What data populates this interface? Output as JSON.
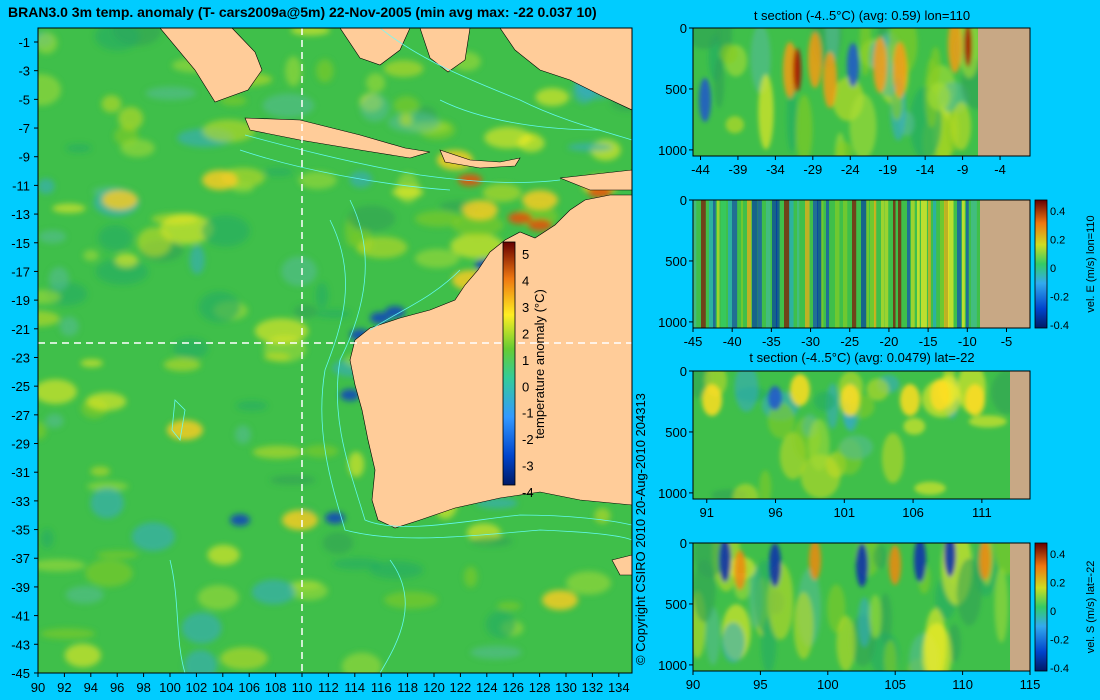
{
  "main_title": "BRAN3.0 3m temp. anomaly (T- cars2009a@5m) 22-Nov-2005 (min avg max: -22 0.037 10)",
  "copyright": "© Copyright CSIRO 2010  20-Aug-2010 204313",
  "colors": {
    "background": "#00ccff",
    "land": "#ffcc99",
    "land_section": "#c8a885",
    "ocean_base": "#3fbf4a",
    "contour": "#66ffff",
    "crosshair": "#ffffff"
  },
  "chart_data": [
    {
      "type": "heatmap",
      "name": "map",
      "x_ticks": [
        "90",
        "92",
        "94",
        "96",
        "98",
        "100",
        "102",
        "104",
        "106",
        "108",
        "110",
        "112",
        "114",
        "116",
        "118",
        "120",
        "122",
        "124",
        "126",
        "128",
        "130",
        "132",
        "134"
      ],
      "y_ticks": [
        "-1",
        "-3",
        "-5",
        "-7",
        "-9",
        "-11",
        "-13",
        "-15",
        "-17",
        "-19",
        "-21",
        "-23",
        "-25",
        "-27",
        "-29",
        "-31",
        "-33",
        "-35",
        "-37",
        "-39",
        "-41",
        "-43",
        "-45"
      ],
      "xlim": [
        90,
        135
      ],
      "ylim": [
        -45,
        0.5
      ],
      "crosshair": {
        "lon": 110,
        "lat": -22
      },
      "colorbar": {
        "label": "temperature anomaly (°C)",
        "range": [
          -4,
          5
        ],
        "ticks": [
          "5",
          "4",
          "3",
          "2",
          "1",
          "0",
          "-1",
          "-2",
          "-3",
          "-4"
        ]
      }
    },
    {
      "type": "heatmap",
      "name": "t-section-lon110",
      "title": "t section (-4..5°C) (avg: 0.59) lon=110",
      "x_ticks": [
        "-44",
        "-39",
        "-34",
        "-29",
        "-24",
        "-19",
        "-14",
        "-9",
        "-4"
      ],
      "y_ticks": [
        "0",
        "500",
        "1000"
      ],
      "xlim": [
        -45,
        0
      ],
      "ylim": [
        1050,
        0
      ]
    },
    {
      "type": "heatmap",
      "name": "u-section-lon110",
      "title": "",
      "x_ticks": [
        "-45",
        "-40",
        "-35",
        "-30",
        "-25",
        "-20",
        "-15",
        "-10",
        "-5"
      ],
      "y_ticks": [
        "0",
        "500",
        "1000"
      ],
      "xlim": [
        -45,
        -2
      ],
      "ylim": [
        1050,
        0
      ],
      "colorbar": {
        "label": "vel. E (m/s) lon=110",
        "range": [
          -0.4,
          0.45
        ],
        "ticks": [
          "0.4",
          "0.2",
          "0",
          "-0.2",
          "-0.4"
        ]
      }
    },
    {
      "type": "heatmap",
      "name": "t-section-lat-22",
      "title": "t section (-4..5°C) (avg: 0.0479) lat=-22",
      "x_ticks": [
        "91",
        "96",
        "101",
        "106",
        "111"
      ],
      "y_ticks": [
        "0",
        "500",
        "1000"
      ],
      "xlim": [
        90,
        114.5
      ],
      "ylim": [
        1050,
        0
      ]
    },
    {
      "type": "heatmap",
      "name": "v-section-lat-22",
      "title": "",
      "x_ticks": [
        "90",
        "95",
        "100",
        "105",
        "110",
        "115"
      ],
      "y_ticks": [
        "0",
        "500",
        "1000"
      ],
      "xlim": [
        90,
        115
      ],
      "ylim": [
        1050,
        0
      ],
      "colorbar": {
        "label": "vel. S (m/s) lat=-22",
        "range": [
          -0.4,
          0.45
        ],
        "ticks": [
          "0.4",
          "0.2",
          "0",
          "-0.2",
          "-0.4"
        ]
      }
    }
  ]
}
